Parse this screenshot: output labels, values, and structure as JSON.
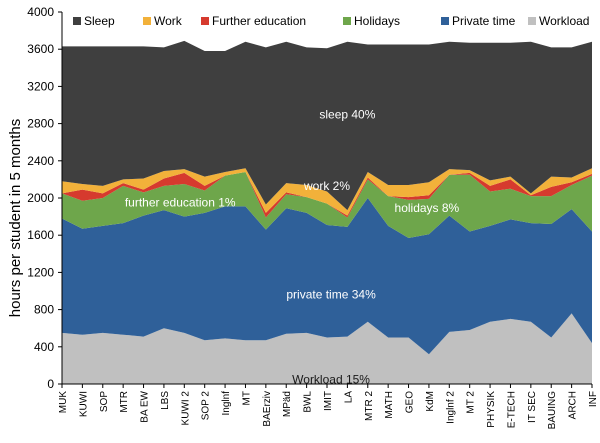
{
  "chart_data": {
    "type": "area",
    "stacked": true,
    "ylabel": "hours per student in 5 months",
    "ylim": [
      0,
      4000
    ],
    "yticks": [
      0,
      400,
      800,
      1200,
      1600,
      2000,
      2400,
      2800,
      3200,
      3600,
      4000
    ],
    "grid": false,
    "legend_position": "top",
    "categories": [
      "MUK",
      "KUWI",
      "SOP",
      "MTR",
      "BA EW",
      "LBS",
      "KUWI 2",
      "SOP 2",
      "Inglnf",
      "MT",
      "BAErziv",
      "MPäd",
      "BWL",
      "IMIT",
      "LA",
      "MTR 2",
      "MATH",
      "GEO",
      "KdM",
      "Inglnf 2",
      "MT 2",
      "PHYSIK",
      "E-TECH",
      "IT SEC",
      "BAUING",
      "ARCH",
      "INF"
    ],
    "series": [
      {
        "name": "Workload",
        "color": "#c0c0c0",
        "values": [
          550,
          530,
          550,
          530,
          510,
          600,
          550,
          470,
          490,
          470,
          470,
          540,
          550,
          500,
          510,
          670,
          500,
          500,
          320,
          560,
          580,
          670,
          700,
          670,
          500,
          760,
          440
        ]
      },
      {
        "name": "Private time",
        "color": "#2f6099",
        "values": [
          1230,
          1140,
          1150,
          1200,
          1300,
          1270,
          1250,
          1370,
          1420,
          1440,
          1190,
          1350,
          1290,
          1210,
          1180,
          1330,
          1200,
          1070,
          1290,
          1250,
          1060,
          1030,
          1070,
          1060,
          1220,
          1120,
          1200
        ]
      },
      {
        "name": "Holidays",
        "color": "#6ea64b",
        "values": [
          270,
          300,
          300,
          400,
          250,
          260,
          350,
          240,
          330,
          370,
          130,
          150,
          170,
          230,
          100,
          200,
          320,
          410,
          380,
          440,
          610,
          370,
          330,
          290,
          300,
          260,
          600
        ]
      },
      {
        "name": "Further education",
        "color": "#d63a2e",
        "values": [
          0,
          120,
          50,
          30,
          30,
          80,
          120,
          50,
          0,
          0,
          50,
          20,
          0,
          0,
          20,
          20,
          0,
          30,
          40,
          0,
          20,
          60,
          100,
          10,
          100,
          30,
          20
        ]
      },
      {
        "name": "Work",
        "color": "#f2b13a",
        "values": [
          130,
          60,
          80,
          40,
          120,
          80,
          40,
          100,
          40,
          40,
          90,
          100,
          130,
          130,
          60,
          60,
          120,
          130,
          140,
          60,
          30,
          60,
          30,
          20,
          110,
          50,
          60
        ]
      },
      {
        "name": "Sleep",
        "color": "#3f3f3f",
        "values": [
          1450,
          1480,
          1500,
          1430,
          1420,
          1330,
          1380,
          1350,
          1300,
          1360,
          1690,
          1520,
          1480,
          1540,
          1810,
          1370,
          1510,
          1510,
          1480,
          1370,
          1370,
          1480,
          1440,
          1630,
          1390,
          1400,
          1360
        ]
      }
    ],
    "legend_order": [
      "Sleep",
      "Work",
      "Further education",
      "Holidays",
      "Private time",
      "Workload"
    ],
    "annotations": [
      {
        "text": "sleep 40%",
        "x_index": 14.0,
        "y": 2900,
        "color": "#ffffff"
      },
      {
        "text": "work 2%",
        "x_index": 13.0,
        "y": 2130,
        "color": "#ffffff"
      },
      {
        "text": "further education 1%",
        "x_index": 5.8,
        "y": 1950,
        "color": "#ffffff"
      },
      {
        "text": "holidays 8%",
        "x_index": 17.9,
        "y": 1890,
        "color": "#ffffff"
      },
      {
        "text": "private time 34%",
        "x_index": 13.2,
        "y": 960,
        "color": "#ffffff"
      },
      {
        "text": "Workload 15%",
        "x_index": 13.2,
        "y": 50,
        "color": "#1a1a1a"
      }
    ]
  }
}
